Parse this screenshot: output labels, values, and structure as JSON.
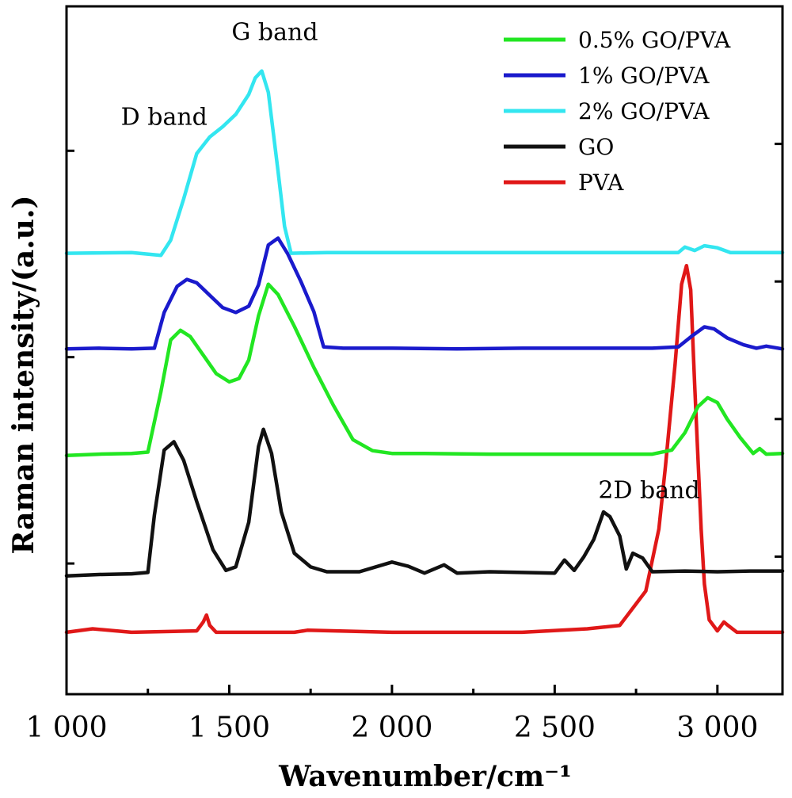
{
  "chart_data": {
    "type": "line",
    "title": "",
    "xlabel": "Wavenumber/cm⁻¹",
    "ylabel": "Raman intensity/(a.u.)",
    "xlim": [
      1000,
      3200
    ],
    "ylim": [
      0,
      1
    ],
    "x_ticks": [
      1000,
      1500,
      2000,
      2500,
      3000
    ],
    "x_tick_labels": [
      "1 000",
      "1 500",
      "2 000",
      "2 500",
      "3 000"
    ],
    "legend_position": "top-right",
    "grid": false,
    "annotations": [
      {
        "text": "D band",
        "x": 1300,
        "y": 0.828
      },
      {
        "text": "G band",
        "x": 1640,
        "y": 0.951
      },
      {
        "text": "2D band",
        "x": 2790,
        "y": 0.285
      }
    ],
    "series": [
      {
        "name": "0.5% GO/PVA",
        "color": "#22e622",
        "x": [
          1000,
          1100,
          1200,
          1250,
          1290,
          1320,
          1350,
          1380,
          1420,
          1460,
          1500,
          1530,
          1560,
          1590,
          1620,
          1650,
          1700,
          1760,
          1820,
          1880,
          1940,
          2000,
          2100,
          2300,
          2500,
          2700,
          2800,
          2860,
          2900,
          2940,
          2970,
          3000,
          3030,
          3070,
          3110,
          3130,
          3150,
          3200
        ],
        "y": [
          0.347,
          0.349,
          0.35,
          0.352,
          0.44,
          0.515,
          0.529,
          0.52,
          0.493,
          0.466,
          0.454,
          0.459,
          0.486,
          0.55,
          0.596,
          0.581,
          0.535,
          0.475,
          0.42,
          0.37,
          0.354,
          0.35,
          0.35,
          0.349,
          0.349,
          0.349,
          0.349,
          0.355,
          0.38,
          0.418,
          0.431,
          0.424,
          0.4,
          0.373,
          0.35,
          0.357,
          0.349,
          0.35
        ]
      },
      {
        "name": "1% GO/PVA",
        "color": "#1a1acc",
        "x": [
          1000,
          1100,
          1200,
          1270,
          1300,
          1340,
          1370,
          1400,
          1440,
          1480,
          1520,
          1560,
          1590,
          1620,
          1650,
          1680,
          1720,
          1760,
          1790,
          1850,
          2000,
          2200,
          2400,
          2600,
          2800,
          2880,
          2920,
          2960,
          2990,
          3030,
          3080,
          3120,
          3150,
          3200
        ],
        "y": [
          0.502,
          0.503,
          0.502,
          0.503,
          0.555,
          0.593,
          0.603,
          0.598,
          0.58,
          0.562,
          0.555,
          0.564,
          0.595,
          0.653,
          0.663,
          0.64,
          0.6,
          0.556,
          0.505,
          0.503,
          0.503,
          0.502,
          0.503,
          0.503,
          0.503,
          0.505,
          0.52,
          0.534,
          0.531,
          0.518,
          0.508,
          0.503,
          0.506,
          0.502
        ]
      },
      {
        "name": "2% GO/PVA",
        "color": "#33e6f0",
        "x": [
          1000,
          1200,
          1290,
          1320,
          1360,
          1400,
          1440,
          1480,
          1520,
          1560,
          1580,
          1600,
          1620,
          1650,
          1670,
          1690,
          1800,
          2000,
          2400,
          2800,
          2880,
          2900,
          2930,
          2960,
          3000,
          3040,
          3100,
          3200
        ],
        "y": [
          0.641,
          0.642,
          0.638,
          0.66,
          0.72,
          0.786,
          0.81,
          0.825,
          0.843,
          0.872,
          0.896,
          0.906,
          0.875,
          0.76,
          0.68,
          0.641,
          0.642,
          0.642,
          0.642,
          0.642,
          0.642,
          0.65,
          0.645,
          0.652,
          0.649,
          0.642,
          0.642,
          0.642
        ]
      },
      {
        "name": "GO",
        "color": "#111111",
        "x": [
          1000,
          1100,
          1200,
          1250,
          1270,
          1300,
          1330,
          1360,
          1400,
          1450,
          1490,
          1520,
          1560,
          1590,
          1605,
          1630,
          1660,
          1700,
          1750,
          1800,
          1900,
          2000,
          2050,
          2100,
          2160,
          2200,
          2300,
          2400,
          2500,
          2530,
          2560,
          2590,
          2620,
          2650,
          2670,
          2700,
          2720,
          2740,
          2770,
          2800,
          2900,
          3000,
          3100,
          3200
        ],
        "y": [
          0.172,
          0.174,
          0.175,
          0.177,
          0.26,
          0.355,
          0.367,
          0.34,
          0.28,
          0.21,
          0.18,
          0.185,
          0.25,
          0.36,
          0.385,
          0.35,
          0.265,
          0.205,
          0.185,
          0.178,
          0.178,
          0.192,
          0.186,
          0.176,
          0.188,
          0.176,
          0.178,
          0.177,
          0.176,
          0.195,
          0.18,
          0.2,
          0.225,
          0.265,
          0.258,
          0.23,
          0.182,
          0.205,
          0.198,
          0.178,
          0.179,
          0.178,
          0.179,
          0.179
        ]
      },
      {
        "name": "PVA",
        "color": "#e01818",
        "x": [
          1000,
          1080,
          1200,
          1400,
          1420,
          1430,
          1440,
          1460,
          1700,
          1740,
          2000,
          2200,
          2400,
          2600,
          2700,
          2780,
          2820,
          2840,
          2870,
          2890,
          2905,
          2918,
          2930,
          2950,
          2960,
          2975,
          3000,
          3020,
          3030,
          3060,
          3100,
          3200
        ],
        "y": [
          0.09,
          0.095,
          0.09,
          0.092,
          0.105,
          0.115,
          0.1,
          0.09,
          0.09,
          0.093,
          0.09,
          0.09,
          0.09,
          0.095,
          0.1,
          0.15,
          0.24,
          0.33,
          0.48,
          0.596,
          0.623,
          0.588,
          0.45,
          0.24,
          0.16,
          0.108,
          0.092,
          0.105,
          0.101,
          0.09,
          0.09,
          0.09
        ]
      }
    ]
  }
}
